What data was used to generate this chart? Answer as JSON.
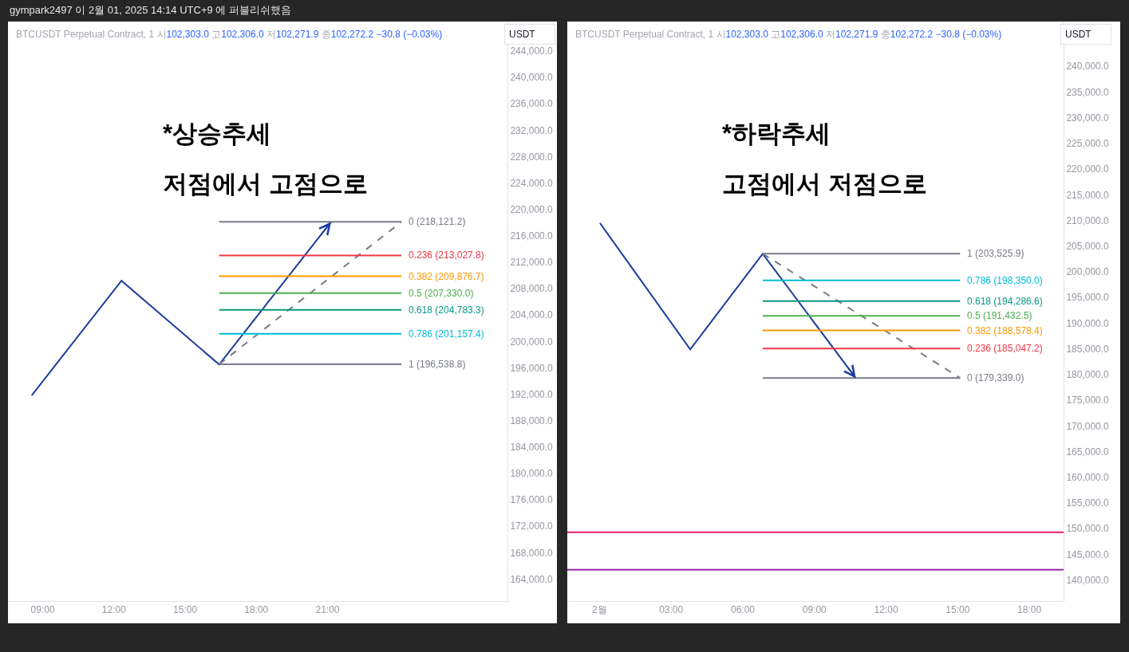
{
  "chart_data": [
    {
      "type": "other",
      "title": "gympark2497 이 2월 01, 2025 14:14 UTC+9 에 퍼블리쉬했음"
    },
    {
      "type": "line",
      "title": "*상승추세",
      "subtitle": "저점에서 고점으로",
      "ylabel": "USDT",
      "annotations": [
        "BTCUSDT Perpetual Contract, 1 시102,303.0 고102,306.0 저102,271.9 종102,272.2 −30.8 (−0.03%)"
      ],
      "xlim": [
        "2025-02-01T07:32",
        "2025-02-02T04:35"
      ],
      "xticks": [
        {
          "value": "2025-02-01T09:00",
          "label": "09:00"
        },
        {
          "value": "2025-02-01T12:00",
          "label": "12:00"
        },
        {
          "value": "2025-02-01T15:00",
          "label": "15:00"
        },
        {
          "value": "2025-02-01T18:00",
          "label": "18:00"
        },
        {
          "value": "2025-02-01T21:00",
          "label": "21:00"
        }
      ],
      "ylim": [
        160670,
        248470
      ],
      "yticks": [
        {
          "value": 164000,
          "label": "164,000.0"
        },
        {
          "value": 168000,
          "label": "168,000.0"
        },
        {
          "value": 172000,
          "label": "172,000.0"
        },
        {
          "value": 176000,
          "label": "176,000.0"
        },
        {
          "value": 180000,
          "label": "180,000.0"
        },
        {
          "value": 184000,
          "label": "184,000.0"
        },
        {
          "value": 188000,
          "label": "188,000.0"
        },
        {
          "value": 192000,
          "label": "192,000.0"
        },
        {
          "value": 196000,
          "label": "196,000.0"
        },
        {
          "value": 200000,
          "label": "200,000.0"
        },
        {
          "value": 204000,
          "label": "204,000.0"
        },
        {
          "value": 208000,
          "label": "208,000.0"
        },
        {
          "value": 212000,
          "label": "212,000.0"
        },
        {
          "value": 216000,
          "label": "216,000.0"
        },
        {
          "value": 220000,
          "label": "220,000.0"
        },
        {
          "value": 224000,
          "label": "224,000.0"
        },
        {
          "value": 228000,
          "label": "228,000.0"
        },
        {
          "value": 232000,
          "label": "232,000.0"
        },
        {
          "value": 236000,
          "label": "236,000.0"
        },
        {
          "value": 240000,
          "label": "240,000.0"
        },
        {
          "value": 244000,
          "label": "244,000.0"
        }
      ],
      "series": [
        {
          "color": "#1c3c9c",
          "x": [
            "2025-02-01T08:32",
            "2025-02-01T12:19",
            "2025-02-01T16:26",
            "2025-02-01T21:09"
          ],
          "values": [
            191800,
            209200,
            196500,
            218100
          ]
        },
        {
          "color": "#787b86",
          "line_style": "dashed",
          "x": [
            "2025-02-01T16:26",
            "2025-02-02T00:07"
          ],
          "values": [
            196538.8,
            218121.2
          ]
        },
        {
          "name": "0 (218,121.2)",
          "color": "#787b86",
          "x": [
            "2025-02-01T16:26",
            "2025-02-02T00:07"
          ],
          "values": [
            218121.2,
            218121.2
          ]
        },
        {
          "name": "0.236 (213,027.8)",
          "color": "#f23645",
          "x": [
            "2025-02-01T16:26",
            "2025-02-02T00:07"
          ],
          "values": [
            213027.8,
            213027.8
          ]
        },
        {
          "name": "0.382 (209,876.7)",
          "color": "#ff9800",
          "x": [
            "2025-02-01T16:26",
            "2025-02-02T00:07"
          ],
          "values": [
            209876.7,
            209876.7
          ]
        },
        {
          "name": "0.5 (207,330.0)",
          "color": "#4caf50",
          "x": [
            "2025-02-01T16:26",
            "2025-02-02T00:07"
          ],
          "values": [
            207330.0,
            207330.0
          ]
        },
        {
          "name": "0.618 (204,783.3)",
          "color": "#089981",
          "x": [
            "2025-02-01T16:26",
            "2025-02-02T00:07"
          ],
          "values": [
            204783.3,
            204783.3
          ]
        },
        {
          "name": "0.786 (201,157.4)",
          "color": "#00bcd4",
          "x": [
            "2025-02-01T16:26",
            "2025-02-02T00:07"
          ],
          "values": [
            201157.4,
            201157.4
          ]
        },
        {
          "name": "1 (196,538.8)",
          "color": "#787b86",
          "x": [
            "2025-02-01T16:26",
            "2025-02-02T00:07"
          ],
          "values": [
            196538.8,
            196538.8
          ]
        }
      ]
    },
    {
      "type": "line",
      "title": "*하락추세",
      "subtitle": "고점에서 저점으로",
      "ylabel": "USDT",
      "annotations": [
        "BTCUSDT Perpetual Contract, 1 시102,303.0 고102,306.0 저102,271.9 종102,272.2 −30.8 (−0.03%)"
      ],
      "xlim": [
        "2025-01-31T22:39",
        "2025-02-01T19:26"
      ],
      "xticks": [
        {
          "value": "2025-02-01",
          "label": "2월"
        },
        {
          "value": "2025-02-01T03:00",
          "label": "03:00"
        },
        {
          "value": "2025-02-01T06:00",
          "label": "06:00"
        },
        {
          "value": "2025-02-01T09:00",
          "label": "09:00"
        },
        {
          "value": "2025-02-01T12:00",
          "label": "12:00"
        },
        {
          "value": "2025-02-01T15:00",
          "label": "15:00"
        },
        {
          "value": "2025-02-01T18:00",
          "label": "18:00"
        }
      ],
      "ylim": [
        135920,
        248720
      ],
      "yticks": [
        {
          "value": 140000,
          "label": "140,000.0"
        },
        {
          "value": 145000,
          "label": "145,000.0"
        },
        {
          "value": 150000,
          "label": "150,000.0"
        },
        {
          "value": 155000,
          "label": "155,000.0"
        },
        {
          "value": 160000,
          "label": "160,000.0"
        },
        {
          "value": 165000,
          "label": "165,000.0"
        },
        {
          "value": 170000,
          "label": "170,000.0"
        },
        {
          "value": 175000,
          "label": "175,000.0"
        },
        {
          "value": 180000,
          "label": "180,000.0"
        },
        {
          "value": 185000,
          "label": "185,000.0"
        },
        {
          "value": 190000,
          "label": "190,000.0"
        },
        {
          "value": 195000,
          "label": "195,000.0"
        },
        {
          "value": 200000,
          "label": "200,000.0"
        },
        {
          "value": 205000,
          "label": "205,000.0"
        },
        {
          "value": 210000,
          "label": "210,000.0"
        },
        {
          "value": 215000,
          "label": "215,000.0"
        },
        {
          "value": 220000,
          "label": "220,000.0"
        },
        {
          "value": 225000,
          "label": "225,000.0"
        },
        {
          "value": 230000,
          "label": "230,000.0"
        },
        {
          "value": 235000,
          "label": "235,000.0"
        },
        {
          "value": 240000,
          "label": "240,000.0"
        }
      ],
      "series": [
        {
          "color": "#1c3c9c",
          "x": [
            "2025-02-01T00:01",
            "2025-02-01T03:48",
            "2025-02-01T06:50",
            "2025-02-01T10:44"
          ],
          "values": [
            209500,
            184900,
            203500,
            179300
          ]
        },
        {
          "color": "#787b86",
          "line_style": "dashed",
          "x": [
            "2025-02-01T06:50",
            "2025-02-01T15:06"
          ],
          "values": [
            203525.9,
            179339.0
          ]
        },
        {
          "name": "1 (203,525.9)",
          "color": "#787b86",
          "x": [
            "2025-02-01T06:50",
            "2025-02-01T15:06"
          ],
          "values": [
            203525.9,
            203525.9
          ]
        },
        {
          "name": "0.786 (198,350.0)",
          "color": "#00bcd4",
          "x": [
            "2025-02-01T06:50",
            "2025-02-01T15:06"
          ],
          "values": [
            198350.0,
            198350.0
          ]
        },
        {
          "name": "0.618 (194,286.6)",
          "color": "#089981",
          "x": [
            "2025-02-01T06:50",
            "2025-02-01T15:06"
          ],
          "values": [
            194286.6,
            194286.6
          ]
        },
        {
          "name": "0.5 (191,432.5)",
          "color": "#4caf50",
          "x": [
            "2025-02-01T06:50",
            "2025-02-01T15:06"
          ],
          "values": [
            191432.5,
            191432.5
          ]
        },
        {
          "name": "0.382 (188,578.4)",
          "color": "#ff9800",
          "x": [
            "2025-02-01T06:50",
            "2025-02-01T15:06"
          ],
          "values": [
            188578.4,
            188578.4
          ]
        },
        {
          "name": "0.236 (185,047.2)",
          "color": "#f23645",
          "x": [
            "2025-02-01T06:50",
            "2025-02-01T15:06"
          ],
          "values": [
            185047.2,
            185047.2
          ]
        },
        {
          "name": "0 (179,339.0)",
          "color": "#787b86",
          "x": [
            "2025-02-01T06:50",
            "2025-02-01T15:06"
          ],
          "values": [
            179339.0,
            179339.0
          ]
        }
      ],
      "ref_lines": [
        {
          "axis": "y",
          "value": 149300,
          "color": "#e91e63"
        },
        {
          "axis": "y",
          "value": 142000,
          "color": "#9c27b0"
        }
      ]
    }
  ]
}
